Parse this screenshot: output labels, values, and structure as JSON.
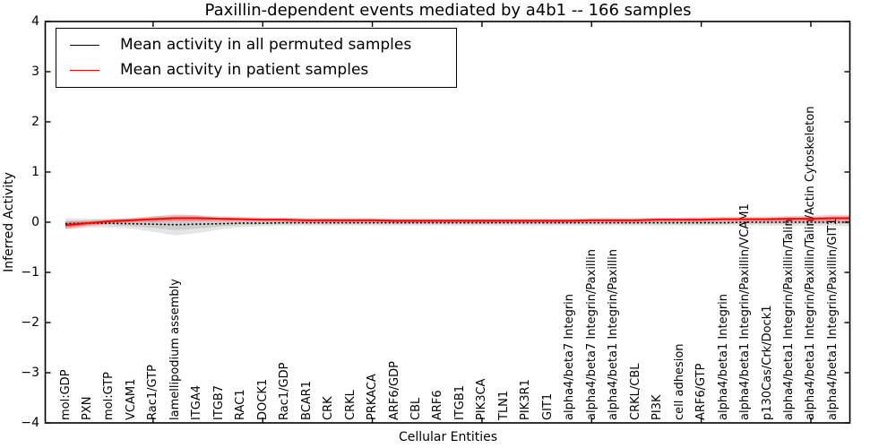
{
  "legend": {
    "entries": [
      {
        "label": "Mean activity in all permuted samples",
        "color": "#000000"
      },
      {
        "label": "Mean activity in patient samples",
        "color": "#ff0000"
      }
    ]
  },
  "chart_data": {
    "type": "line",
    "title": "Paxillin-dependent events mediated by a4b1 -- 166 samples",
    "xlabel": "Cellular Entities",
    "ylabel": "Inferred Activity",
    "ylim": [
      -4,
      4
    ],
    "grid": false,
    "legend_position": "upper left",
    "background": "#ffffff",
    "frame_color": "#000000",
    "zero_line": 0,
    "major_xtick_every": 5,
    "yticks": [
      {
        "value": 4,
        "label": "4"
      },
      {
        "value": 3,
        "label": "3"
      },
      {
        "value": 2,
        "label": "2"
      },
      {
        "value": 1,
        "label": "1"
      },
      {
        "value": 0,
        "label": "0"
      },
      {
        "value": -1,
        "label": "−1"
      },
      {
        "value": -2,
        "label": "−2"
      },
      {
        "value": -3,
        "label": "−3"
      },
      {
        "value": -4,
        "label": "−4"
      }
    ],
    "categories": [
      "mol:GDP",
      "PXN",
      "mol:GTP",
      "VCAM1",
      "Rac1/GTP",
      "lamellipodium assembly",
      "ITGA4",
      "ITGB7",
      "RAC1",
      "DOCK1",
      "Rac1/GDP",
      "BCAR1",
      "CRK",
      "CRKL",
      "PRKACA",
      "ARF6/GDP",
      "CBL",
      "ARF6",
      "ITGB1",
      "PIK3CA",
      "TLN1",
      "PIK3R1",
      "GIT1",
      "alpha4/beta7 Integrin",
      "alpha4/beta7 Integrin/Paxillin",
      "alpha4/beta1 Integrin/Paxillin",
      "CRKL/CBL",
      "PI3K",
      "cell adhesion",
      "ARF6/GTP",
      "alpha4/beta1 Integrin",
      "alpha4/beta1 Integrin/Paxillin/VCAM1",
      "p130Cas/Crk/Dock1",
      "alpha4/beta1 Integrin/Paxillin/Talin",
      "alpha4/beta1 Integrin/Paxillin/Talin/Actin Cytoskeleton",
      "alpha4/beta1 Integrin/Paxillin/GIT1"
    ],
    "series": [
      {
        "name": "Mean activity in all permuted samples",
        "color": "#000000",
        "style": "dotted",
        "band_outer_color": "rgba(0,0,0,0.10)",
        "band_inner_color": "rgba(0,0,0,0.10)",
        "mean": [
          -0.03,
          -0.02,
          -0.02,
          -0.03,
          -0.04,
          -0.05,
          -0.04,
          -0.03,
          -0.02,
          -0.02,
          -0.01,
          -0.01,
          -0.01,
          -0.01,
          -0.01,
          -0.01,
          -0.01,
          -0.01,
          -0.01,
          -0.01,
          -0.01,
          -0.01,
          -0.01,
          -0.01,
          -0.01,
          -0.01,
          -0.01,
          -0.01,
          -0.01,
          -0.01,
          -0.01,
          0,
          0,
          0,
          0,
          0
        ],
        "std": [
          0.11,
          0.09,
          0.08,
          0.1,
          0.15,
          0.21,
          0.18,
          0.12,
          0.08,
          0.06,
          0.06,
          0.06,
          0.06,
          0.06,
          0.06,
          0.06,
          0.06,
          0.06,
          0.06,
          0.06,
          0.06,
          0.06,
          0.06,
          0.06,
          0.06,
          0.06,
          0.06,
          0.06,
          0.06,
          0.06,
          0.06,
          0.06,
          0.07,
          0.07,
          0.07,
          0.08
        ]
      },
      {
        "name": "Mean activity in patient samples",
        "color": "#ff0000",
        "style": "solid",
        "band_outer_color": "rgba(255,0,0,0.20)",
        "band_inner_color": "rgba(255,0,0,0.30)",
        "mean": [
          -0.06,
          -0.02,
          0.02,
          0.04,
          0.06,
          0.08,
          0.08,
          0.07,
          0.06,
          0.05,
          0.05,
          0.04,
          0.04,
          0.04,
          0.04,
          0.03,
          0.03,
          0.03,
          0.03,
          0.03,
          0.03,
          0.03,
          0.03,
          0.03,
          0.04,
          0.04,
          0.04,
          0.05,
          0.05,
          0.05,
          0.06,
          0.06,
          0.06,
          0.07,
          0.07,
          0.08
        ],
        "std": [
          0.08,
          0.06,
          0.05,
          0.05,
          0.06,
          0.06,
          0.06,
          0.05,
          0.05,
          0.045,
          0.045,
          0.045,
          0.045,
          0.045,
          0.045,
          0.045,
          0.045,
          0.045,
          0.045,
          0.045,
          0.045,
          0.045,
          0.045,
          0.045,
          0.045,
          0.045,
          0.045,
          0.045,
          0.045,
          0.05,
          0.05,
          0.05,
          0.05,
          0.055,
          0.06,
          0.065
        ]
      }
    ]
  }
}
